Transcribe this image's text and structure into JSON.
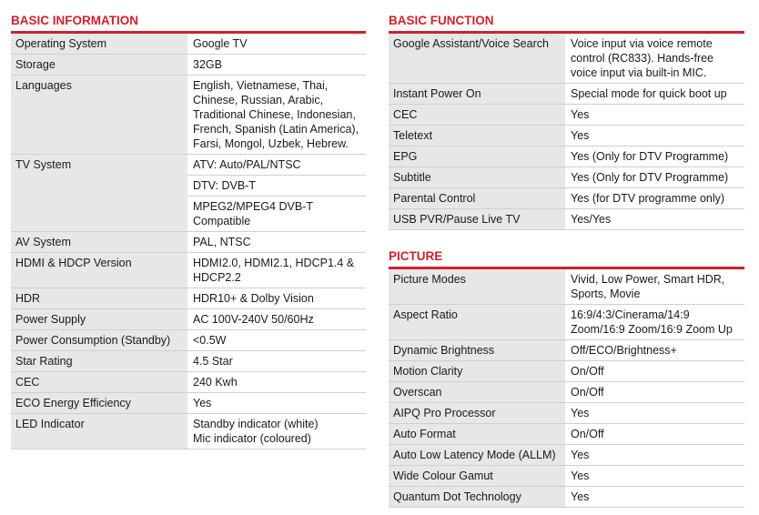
{
  "columns": [
    [
      {
        "title": "BASIC INFORMATION",
        "rows": [
          {
            "label": "Operating System",
            "values": [
              [
                "Google TV"
              ]
            ]
          },
          {
            "label": "Storage",
            "values": [
              [
                "32GB"
              ]
            ]
          },
          {
            "label": "Languages",
            "values": [
              [
                "English, Vietnamese, Thai,",
                "Chinese, Russian, Arabic,",
                "Traditional Chinese, Indonesian,",
                "French, Spanish (Latin America),",
                "Farsi, Mongol, Uzbek, Hebrew."
              ]
            ]
          },
          {
            "label": "TV System",
            "values": [
              [
                "ATV: Auto/PAL/NTSC"
              ],
              [
                "DTV: DVB-T"
              ],
              [
                "MPEG2/MPEG4 DVB-T",
                "Compatible"
              ]
            ]
          },
          {
            "label": "AV System",
            "values": [
              [
                "PAL, NTSC"
              ]
            ]
          },
          {
            "label": "HDMI & HDCP Version",
            "values": [
              [
                "HDMI2.0, HDMI2.1, HDCP1.4 &",
                "HDCP2.2"
              ]
            ]
          },
          {
            "label": "HDR",
            "values": [
              [
                "HDR10+ & Dolby Vision"
              ]
            ]
          },
          {
            "label": "Power Supply",
            "values": [
              [
                "AC 100V-240V 50/60Hz"
              ]
            ]
          },
          {
            "label": "Power Consumption (Standby)",
            "values": [
              [
                "<0.5W"
              ]
            ]
          },
          {
            "label": "Star Rating",
            "values": [
              [
                "4.5 Star"
              ]
            ]
          },
          {
            "label": "CEC",
            "values": [
              [
                "240 Kwh"
              ]
            ]
          },
          {
            "label": "ECO Energy Efficiency",
            "values": [
              [
                "Yes"
              ]
            ]
          },
          {
            "label": "LED Indicator",
            "values": [
              [
                "Standby indicator (white)",
                "Mic indicator (coloured)"
              ]
            ]
          }
        ]
      }
    ],
    [
      {
        "title": "BASIC FUNCTION",
        "rows": [
          {
            "label": "Google Assistant/Voice Search",
            "values": [
              [
                "Voice input via voice remote",
                "control (RC833). Hands-free",
                "voice input via built-in MIC."
              ]
            ]
          },
          {
            "label": "Instant Power On",
            "values": [
              [
                "Special mode for quick boot up"
              ]
            ]
          },
          {
            "label": "CEC",
            "values": [
              [
                "Yes"
              ]
            ]
          },
          {
            "label": "Teletext",
            "values": [
              [
                "Yes"
              ]
            ]
          },
          {
            "label": "EPG",
            "values": [
              [
                "Yes (Only for DTV Programme)"
              ]
            ]
          },
          {
            "label": "Subtitle",
            "values": [
              [
                "Yes (Only for DTV Programme)"
              ]
            ]
          },
          {
            "label": "Parental Control",
            "values": [
              [
                "Yes (for DTV programme only)"
              ]
            ]
          },
          {
            "label": "USB PVR/Pause Live TV",
            "values": [
              [
                "Yes/Yes"
              ]
            ]
          }
        ]
      },
      {
        "title": "PICTURE",
        "rows": [
          {
            "label": "Picture Modes",
            "values": [
              [
                "Vivid, Low Power, Smart HDR,",
                "Sports, Movie"
              ]
            ]
          },
          {
            "label": "Aspect Ratio",
            "values": [
              [
                "16:9/4:3/Cinerama/14:9",
                "Zoom/16:9 Zoom/16:9 Zoom Up"
              ]
            ]
          },
          {
            "label": "Dynamic Brightness",
            "values": [
              [
                "Off/ECO/Brightness+"
              ]
            ]
          },
          {
            "label": "Motion Clarity",
            "values": [
              [
                "On/Off"
              ]
            ]
          },
          {
            "label": "Overscan",
            "values": [
              [
                "On/Off"
              ]
            ]
          },
          {
            "label": "AIPQ Pro Processor",
            "values": [
              [
                "Yes"
              ]
            ]
          },
          {
            "label": "Auto Format",
            "values": [
              [
                "On/Off"
              ]
            ]
          },
          {
            "label": "Auto Low Latency Mode (ALLM)",
            "values": [
              [
                "Yes"
              ]
            ]
          },
          {
            "label": "Wide Colour Gamut",
            "values": [
              [
                "Yes"
              ]
            ]
          },
          {
            "label": "Quantum Dot Technology",
            "values": [
              [
                "Yes"
              ]
            ]
          }
        ]
      }
    ]
  ]
}
